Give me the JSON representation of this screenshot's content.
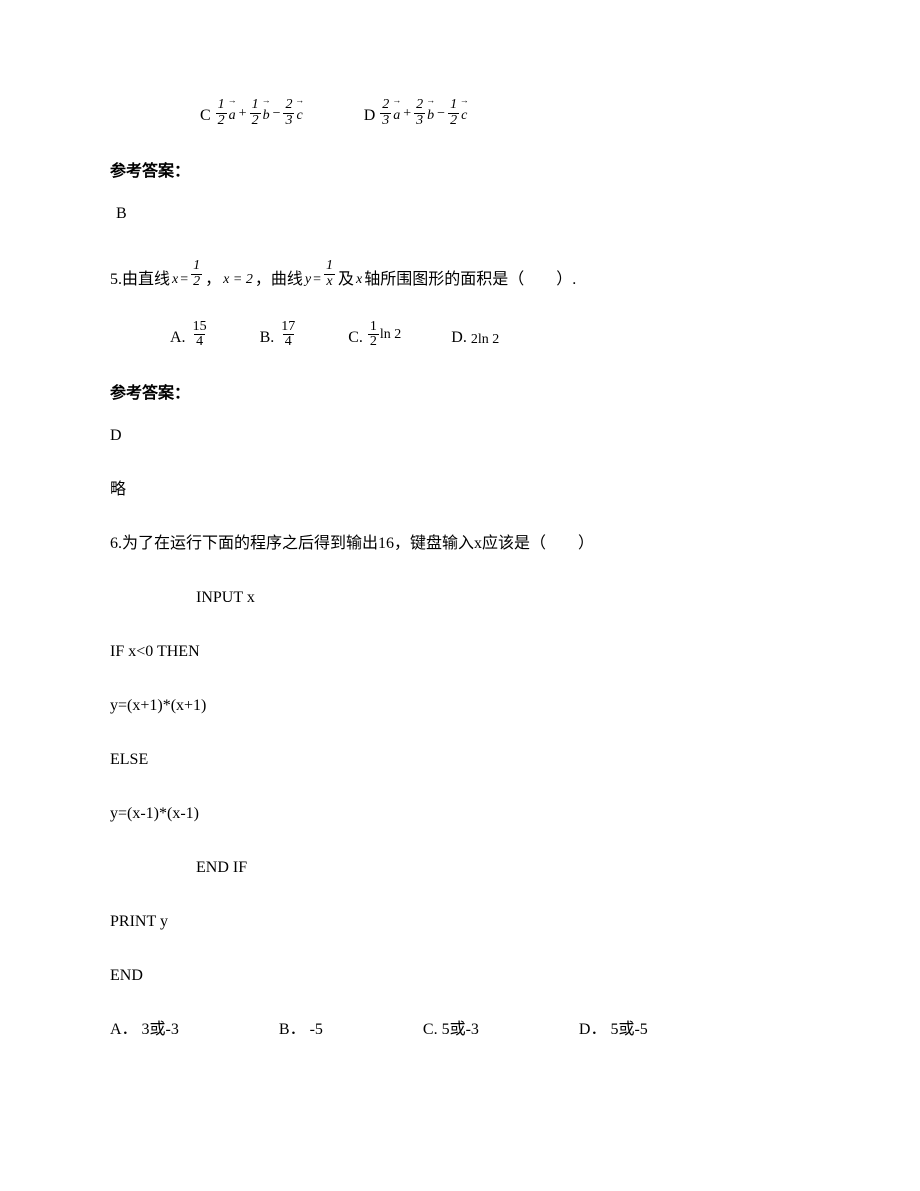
{
  "text_color": "#000000",
  "background_color": "#ffffff",
  "font_family_body": "SimSun",
  "font_family_math": "Times New Roman",
  "q4": {
    "options": {
      "C": {
        "label": "C",
        "terms": [
          "1",
          "2",
          "a",
          "+",
          "1",
          "2",
          "b",
          "−",
          "2",
          "3",
          "c"
        ]
      },
      "D": {
        "label": "D",
        "terms": [
          "2",
          "3",
          "a",
          "+",
          "2",
          "3",
          "b",
          "−",
          "1",
          "2",
          "c"
        ]
      }
    },
    "answer_header": "参考答案：",
    "answer": "B"
  },
  "q5": {
    "number": "5.",
    "text1": "由直线",
    "eq1_lhs": "x",
    "eq1_eq": "=",
    "eq1_num": "1",
    "eq1_den": "2",
    "comma1": "，",
    "eq2": "x = 2",
    "comma2": "，",
    "text2": "曲线",
    "eq3_lhs": "y",
    "eq3_eq": "=",
    "eq3_num": "1",
    "eq3_den": "x",
    "text3": "及",
    "eq4_var": "x",
    "text4": "轴所围图形的面积是（　　）.",
    "options": {
      "A": {
        "letter": "A.",
        "num": "15",
        "den": "4"
      },
      "B": {
        "letter": "B.",
        "num": "17",
        "den": "4"
      },
      "C": {
        "letter": "C.",
        "num": "1",
        "den": "2",
        "after": "ln 2"
      },
      "D": {
        "letter": "D.",
        "text": "2ln 2"
      }
    },
    "answer_header": "参考答案：",
    "answer": "D",
    "note": "略"
  },
  "q6": {
    "number": "6.",
    "stem": "为了在运行下面的程序之后得到输出16，键盘输入x应该是（　　）",
    "code": {
      "l1": "INPUT x",
      "l2": "IF  x<0  THEN",
      "l3": "y=(x+1)*(x+1)",
      "l4": "ELSE",
      "l5": "y=(x-1)*(x-1)",
      "l6": "END IF",
      "l7": "PRINT y",
      "l8": "END"
    },
    "options": {
      "A": "A． 3或-3",
      "B": "B． -5",
      "C": "C. 5或-3",
      "D": "D． 5或-5"
    }
  }
}
